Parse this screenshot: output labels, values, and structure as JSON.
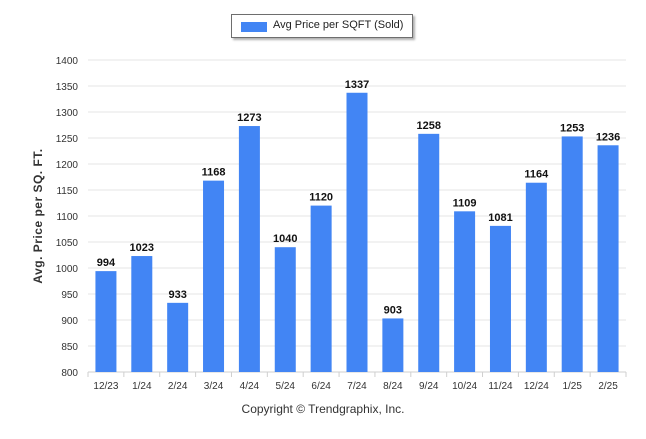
{
  "chart_data": {
    "type": "bar",
    "title": "",
    "xlabel": "",
    "ylabel": "Avg. Price per SQ. FT.",
    "categories": [
      "12/23",
      "1/24",
      "2/24",
      "3/24",
      "4/24",
      "5/24",
      "6/24",
      "7/24",
      "8/24",
      "9/24",
      "10/24",
      "11/24",
      "12/24",
      "1/25",
      "2/25"
    ],
    "series": [
      {
        "name": "Avg Price per SQFT (Sold)",
        "values": [
          994,
          1023,
          933,
          1168,
          1273,
          1040,
          1120,
          1337,
          903,
          1258,
          1109,
          1081,
          1164,
          1253,
          1236
        ],
        "color": "#4285f4"
      }
    ],
    "ylim": [
      800,
      1400
    ],
    "yticks": [
      800,
      850,
      900,
      950,
      1000,
      1050,
      1100,
      1150,
      1200,
      1250,
      1300,
      1350,
      1400
    ],
    "grid": true,
    "legend_position": "top-center",
    "data_labels": true
  },
  "credit": "Copyright © Trendgraphix, Inc."
}
